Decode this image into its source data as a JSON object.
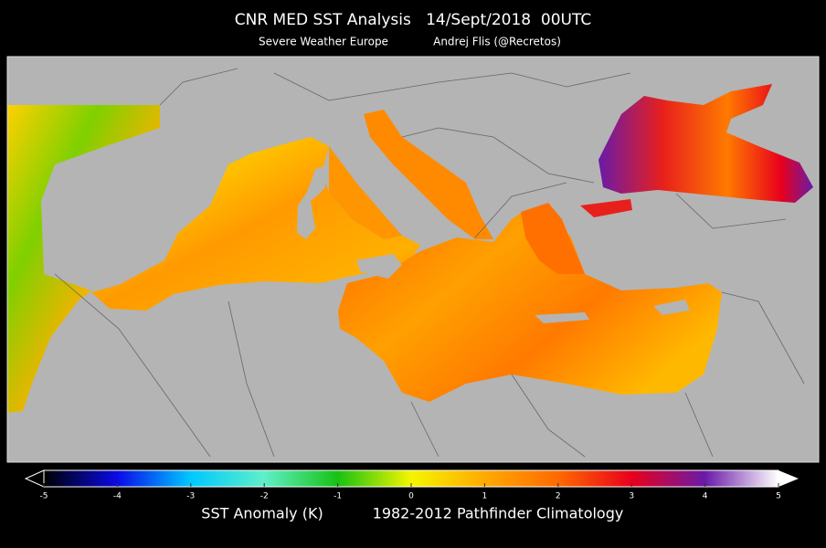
{
  "header": {
    "title": "CNR MED SST Analysis   14/Sept/2018  00UTC",
    "source": "Severe Weather Europe",
    "author": "Andrej Flis (@Recretos)"
  },
  "colorbar": {
    "range": [
      -5,
      5
    ],
    "ticks": [
      -5,
      -4,
      -3,
      -2,
      -1,
      0,
      1,
      2,
      3,
      4,
      5
    ],
    "colors": [
      "#000000",
      "#0a0ae6",
      "#00c8ff",
      "#5ff0c8",
      "#17c214",
      "#f5f500",
      "#ffaa00",
      "#ff6a00",
      "#e8001c",
      "#6a1aa8",
      "#ffffff"
    ],
    "label": "SST Anomaly (K)",
    "climatology": "1982-2012 Pathfinder Climatology"
  }
}
